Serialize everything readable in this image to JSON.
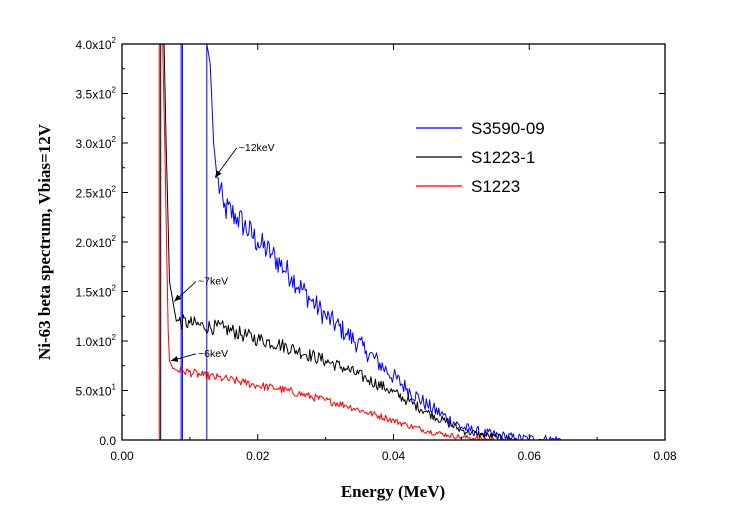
{
  "chart_data": {
    "type": "line",
    "title": "",
    "xlabel": "Energy (MeV)",
    "ylabel": "Ni-63 beta spectrum, Vbias=12V",
    "xlim": [
      0.0,
      0.08
    ],
    "ylim": [
      0,
      400
    ],
    "xticks": [
      {
        "value": 0.0,
        "label": "0.00"
      },
      {
        "value": 0.02,
        "label": "0.02"
      },
      {
        "value": 0.04,
        "label": "0.04"
      },
      {
        "value": 0.06,
        "label": "0.06"
      },
      {
        "value": 0.08,
        "label": "0.08"
      }
    ],
    "yticks": [
      {
        "value": 0,
        "label": "0.0"
      },
      {
        "value": 50,
        "mant": "5.0x10",
        "exp": "1"
      },
      {
        "value": 100,
        "mant": "1.0x10",
        "exp": "2"
      },
      {
        "value": 150,
        "mant": "1.5x10",
        "exp": "2"
      },
      {
        "value": 200,
        "mant": "2.0x10",
        "exp": "2"
      },
      {
        "value": 250,
        "mant": "2.5x10",
        "exp": "2"
      },
      {
        "value": 300,
        "mant": "3.0x10",
        "exp": "2"
      },
      {
        "value": 350,
        "mant": "3.5x10",
        "exp": "2"
      },
      {
        "value": 400,
        "mant": "4.0x10",
        "exp": "2"
      }
    ],
    "legend_position": "upper-right",
    "series": [
      {
        "name": "S3590-09",
        "color": "#0000ff",
        "points": [
          [
            0.0,
            0
          ],
          [
            0.0087,
            0
          ],
          [
            0.0087,
            400
          ],
          [
            0.0089,
            400
          ],
          [
            0.0089,
            0
          ],
          [
            0.0125,
            0
          ],
          [
            0.0125,
            400
          ],
          [
            0.013,
            380
          ],
          [
            0.0135,
            300
          ],
          [
            0.014,
            265
          ],
          [
            0.015,
            235
          ],
          [
            0.017,
            225
          ],
          [
            0.02,
            200
          ],
          [
            0.022,
            188
          ],
          [
            0.025,
            165
          ],
          [
            0.028,
            140
          ],
          [
            0.03,
            125
          ],
          [
            0.033,
            108
          ],
          [
            0.036,
            90
          ],
          [
            0.039,
            70
          ],
          [
            0.042,
            52
          ],
          [
            0.045,
            35
          ],
          [
            0.048,
            22
          ],
          [
            0.05,
            13
          ],
          [
            0.053,
            7
          ],
          [
            0.056,
            4
          ],
          [
            0.058,
            2
          ],
          [
            0.06,
            1
          ],
          [
            0.065,
            0
          ],
          [
            0.08,
            0
          ]
        ],
        "noise": 10
      },
      {
        "name": "S1223-1",
        "color": "#000000",
        "points": [
          [
            0.0,
            0
          ],
          [
            0.0057,
            0
          ],
          [
            0.0057,
            400
          ],
          [
            0.0062,
            400
          ],
          [
            0.0065,
            300
          ],
          [
            0.007,
            160
          ],
          [
            0.0075,
            140
          ],
          [
            0.008,
            120
          ],
          [
            0.01,
            118
          ],
          [
            0.012,
            115
          ],
          [
            0.015,
            113
          ],
          [
            0.018,
            106
          ],
          [
            0.02,
            102
          ],
          [
            0.023,
            97
          ],
          [
            0.026,
            90
          ],
          [
            0.03,
            80
          ],
          [
            0.033,
            72
          ],
          [
            0.036,
            62
          ],
          [
            0.039,
            52
          ],
          [
            0.042,
            40
          ],
          [
            0.045,
            28
          ],
          [
            0.048,
            17
          ],
          [
            0.05,
            10
          ],
          [
            0.053,
            5
          ],
          [
            0.056,
            2
          ],
          [
            0.058,
            0
          ],
          [
            0.08,
            0
          ]
        ],
        "noise": 7
      },
      {
        "name": "S1223",
        "color": "#ff0000",
        "points": [
          [
            0.0,
            0
          ],
          [
            0.0055,
            0
          ],
          [
            0.0055,
            400
          ],
          [
            0.006,
            400
          ],
          [
            0.0063,
            300
          ],
          [
            0.0068,
            110
          ],
          [
            0.007,
            80
          ],
          [
            0.0075,
            72
          ],
          [
            0.009,
            70
          ],
          [
            0.012,
            65
          ],
          [
            0.015,
            62
          ],
          [
            0.018,
            58
          ],
          [
            0.02,
            55
          ],
          [
            0.023,
            52
          ],
          [
            0.026,
            47
          ],
          [
            0.03,
            40
          ],
          [
            0.033,
            35
          ],
          [
            0.036,
            28
          ],
          [
            0.039,
            22
          ],
          [
            0.042,
            15
          ],
          [
            0.045,
            9
          ],
          [
            0.048,
            5
          ],
          [
            0.05,
            3
          ],
          [
            0.053,
            1
          ],
          [
            0.055,
            0
          ],
          [
            0.08,
            0
          ]
        ],
        "noise": 5
      }
    ],
    "annotations": [
      {
        "text": "~12keV",
        "x": 0.0137,
        "y": 265,
        "tx": 0.0172,
        "ty": 292
      },
      {
        "text": "~7keV",
        "x": 0.0077,
        "y": 140,
        "tx": 0.0112,
        "ty": 157
      },
      {
        "text": "~6keV",
        "x": 0.0072,
        "y": 80,
        "tx": 0.0112,
        "ty": 84
      }
    ]
  }
}
